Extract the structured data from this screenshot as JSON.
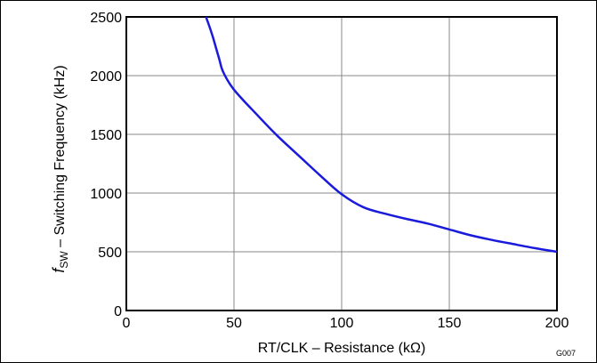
{
  "chart_data": {
    "type": "line",
    "xlabel": "RT/CLK – Resistance (kΩ)",
    "ylabel": {
      "symbol": "f",
      "subscript": "SW",
      "text": " – Switching Frequency (kHz)"
    },
    "xlim": [
      0,
      200
    ],
    "ylim": [
      0,
      2500
    ],
    "xticks": [
      "0",
      "50",
      "100",
      "150",
      "200"
    ],
    "yticks": [
      "0",
      "500",
      "1000",
      "1500",
      "2000",
      "2500"
    ],
    "grid": true,
    "code": "G007",
    "series": [
      {
        "color": "#1a1adc",
        "x": [
          37,
          40,
          43,
          45,
          50,
          60,
          70,
          80,
          90,
          100,
          110,
          120,
          130,
          140,
          150,
          160,
          170,
          180,
          190,
          200
        ],
        "y": [
          2500,
          2340,
          2150,
          2030,
          1880,
          1680,
          1490,
          1320,
          1150,
          990,
          880,
          825,
          780,
          740,
          690,
          640,
          600,
          565,
          530,
          500
        ]
      }
    ]
  }
}
